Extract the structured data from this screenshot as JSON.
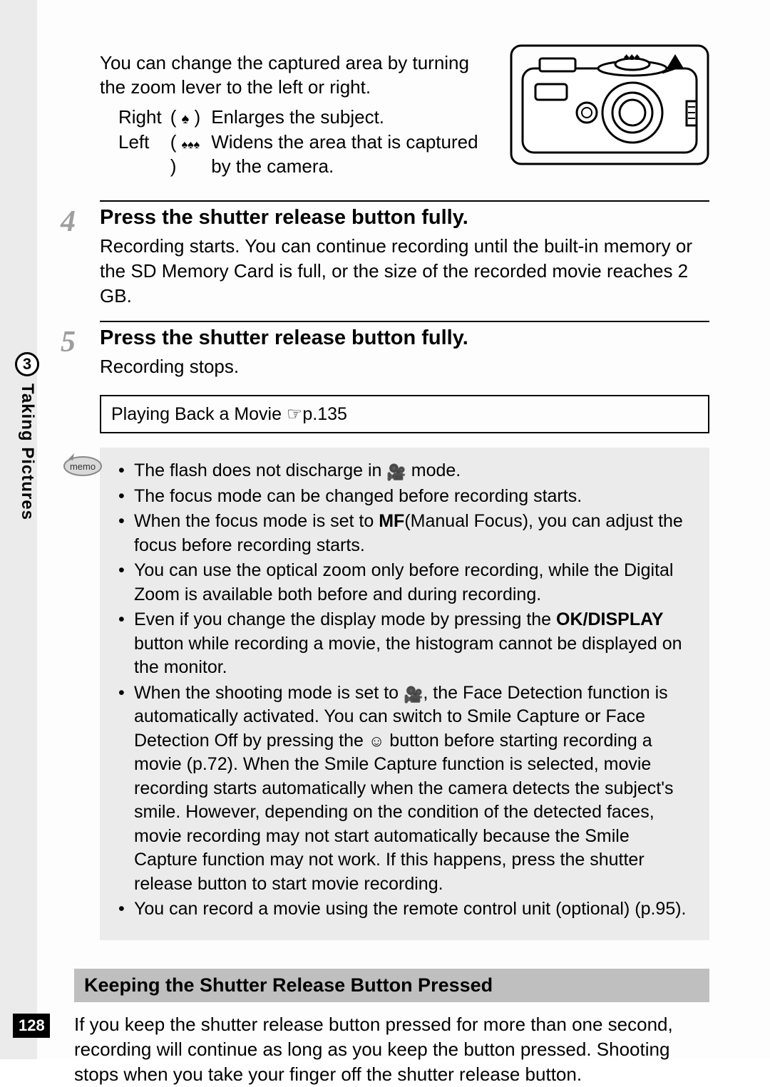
{
  "page": {
    "number": "128",
    "section_number": "3",
    "section_label": "Taking Pictures"
  },
  "intro": {
    "text": "You can change the captured area by turning the zoom lever to the left or right.",
    "rows": [
      {
        "dir": "Right",
        "icon": "♠",
        "desc": "Enlarges the subject."
      },
      {
        "dir": "Left",
        "icon": "♠♠♠",
        "desc": "Widens the area that is captured by the camera."
      }
    ]
  },
  "camera_diagram": {
    "stroke": "#000000",
    "fill": "#ffffff",
    "arrow_fill": "#000000"
  },
  "steps": [
    {
      "num": "4",
      "title": "Press the shutter release button fully.",
      "body": "Recording starts. You can continue recording until the built-in memory or the SD Memory Card is full, or the size of the recorded movie reaches 2 GB."
    },
    {
      "num": "5",
      "title": "Press the shutter release button fully.",
      "body": "Recording stops."
    }
  ],
  "reference": {
    "text": "Playing Back a Movie ",
    "page_icon": "☞",
    "page_ref": "p.135"
  },
  "memo": {
    "badge_label": "memo",
    "items": [
      {
        "pre": "The flash does not discharge in ",
        "icon": "movie",
        "post": " mode."
      },
      {
        "pre": "The focus mode can be changed before recording starts.",
        "icon": "",
        "post": ""
      },
      {
        "pre": "When the focus mode is set to ",
        "bold": "MF",
        "post2": "(Manual Focus), you can adjust the focus before recording starts."
      },
      {
        "pre": "You can use the optical zoom only before recording, while the Digital Zoom is available both before and during recording."
      },
      {
        "pre": "Even if you change the display mode by pressing the ",
        "bold": "OK/DISPLAY",
        "post2": " button while recording a movie, the histogram cannot be displayed on the monitor."
      },
      {
        "pre": "When the shooting mode is set to ",
        "icon": "movie",
        "post": ", the Face Detection function is automatically activated. You can switch to Smile Capture or Face Detection Off by pressing the ",
        "icon2": "face",
        "post3": " button before starting recording a movie (p.72). When the Smile Capture function is selected, movie recording starts automatically when the camera detects the subject's smile. However, depending on the condition of the detected faces, movie recording may not start automatically because the Smile Capture function may not work. If this happens, press the shutter release button to start movie recording."
      },
      {
        "pre": "You can record a movie using the remote control unit (optional) (p.95)."
      }
    ]
  },
  "sub": {
    "heading": "Keeping the Shutter Release Button Pressed",
    "body": "If you keep the shutter release button pressed for more than one second, recording will continue as long as you keep the button pressed. Shooting stops when you take your finger off the shutter release button."
  },
  "colors": {
    "memo_bg": "#ebebeb",
    "subheading_bg": "#bfbfbf",
    "step_num_color": "#9e9e9e"
  }
}
